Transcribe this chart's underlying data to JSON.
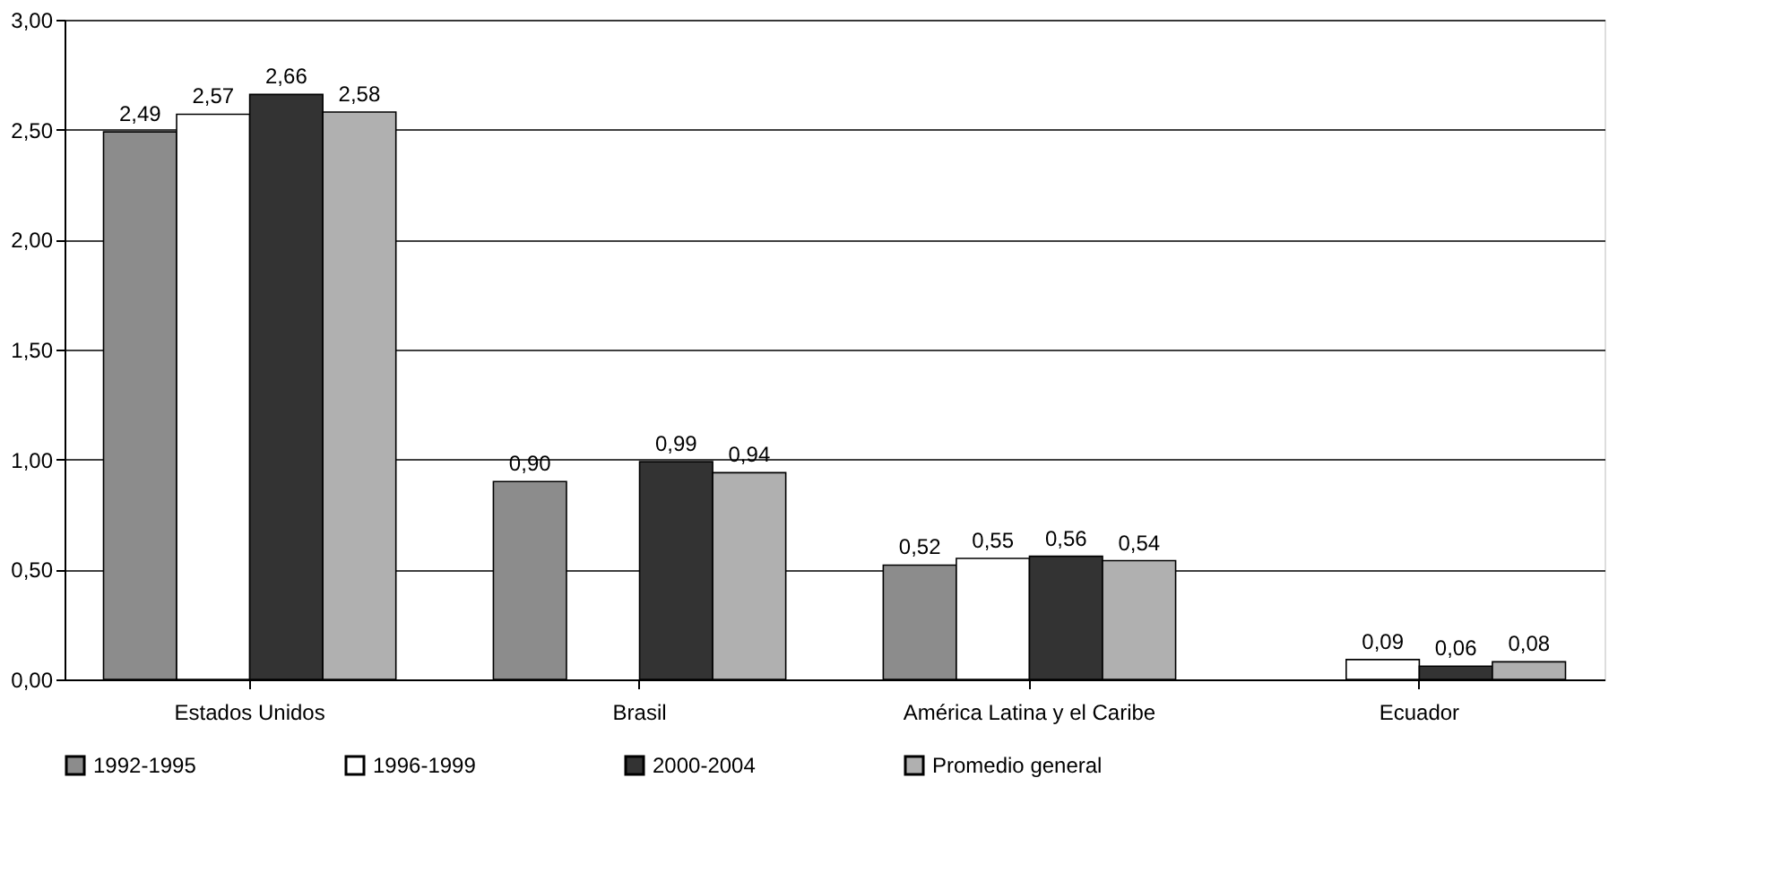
{
  "chart_data": {
    "type": "bar",
    "categories": [
      "Estados Unidos",
      "Brasil",
      "América Latina y el Caribe",
      "Ecuador"
    ],
    "series": [
      {
        "name": "1992-1995",
        "color": "#8c8c8c",
        "values": [
          2.49,
          0.9,
          0.52,
          null
        ],
        "value_labels": [
          "2,49",
          "0,90",
          "0,52",
          null
        ]
      },
      {
        "name": "1996-1999",
        "color": "#ffffff",
        "values": [
          2.57,
          null,
          0.55,
          0.09
        ],
        "value_labels": [
          "2,57",
          null,
          "0,55",
          "0,09"
        ]
      },
      {
        "name": "2000-2004",
        "color": "#333333",
        "values": [
          2.66,
          0.99,
          0.56,
          0.06
        ],
        "value_labels": [
          "2,66",
          "0,99",
          "0,56",
          "0,06"
        ]
      },
      {
        "name": "Promedio general",
        "color": "#b0b0b0",
        "values": [
          2.58,
          0.94,
          0.54,
          0.08
        ],
        "value_labels": [
          "2,58",
          "0,94",
          "0,54",
          "0,08"
        ]
      }
    ],
    "ylim": [
      0,
      3
    ],
    "yticks": [
      {
        "value": 0,
        "label": "0,00"
      },
      {
        "value": 0.5,
        "label": "0,50"
      },
      {
        "value": 1,
        "label": "1,00"
      },
      {
        "value": 1.5,
        "label": "1,50"
      },
      {
        "value": 2,
        "label": "2,00"
      },
      {
        "value": 2.5,
        "label": "2,50"
      },
      {
        "value": 3,
        "label": "3,00"
      }
    ],
    "grid": "y",
    "legend": "bottom"
  }
}
